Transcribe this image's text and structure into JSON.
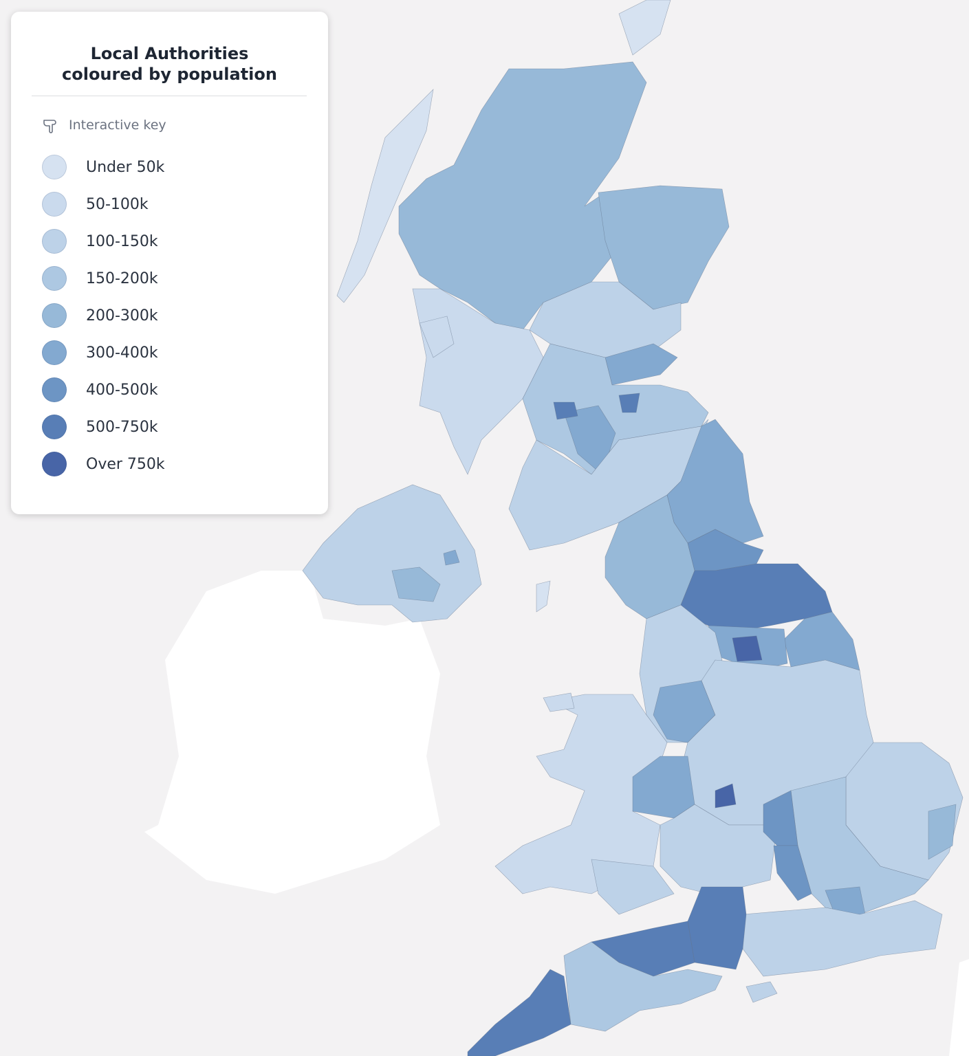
{
  "legend": {
    "title": [
      "Local Authorities",
      "coloured by population"
    ],
    "hint": "Interactive key",
    "items": [
      {
        "label": "Under 50k",
        "color": "#d6e2f1"
      },
      {
        "label": "50-100k",
        "color": "#cadaed"
      },
      {
        "label": "100-150k",
        "color": "#bdd2e8"
      },
      {
        "label": "150-200k",
        "color": "#adc8e2"
      },
      {
        "label": "200-300k",
        "color": "#97b9d8"
      },
      {
        "label": "300-400k",
        "color": "#83a9d0"
      },
      {
        "label": "400-500k",
        "color": "#6d95c4"
      },
      {
        "label": "500-750k",
        "color": "#587eb6"
      },
      {
        "label": "Over 750k",
        "color": "#4865a7"
      }
    ]
  }
}
